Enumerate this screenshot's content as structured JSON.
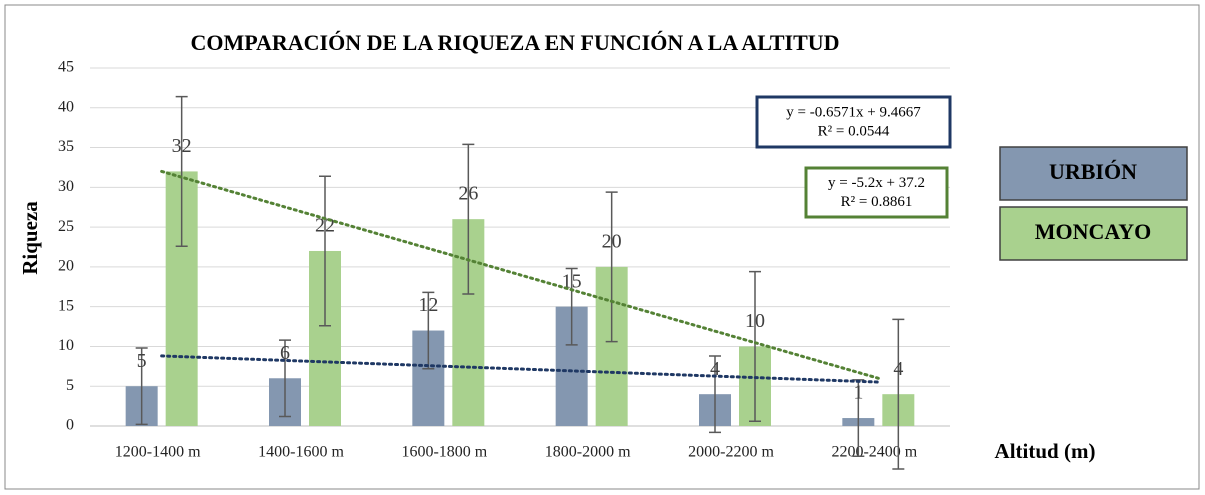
{
  "chart_data": {
    "type": "bar",
    "title": "COMPARACIÓN DE LA RIQUEZA EN FUNCIÓN A LA ALTITUD",
    "x_label": "Altitud (m)",
    "y_label": "Riqueza",
    "categories": [
      "1200-1400 m",
      "1400-1600 m",
      "1600-1800 m",
      "1800-2000 m",
      "2000-2200 m",
      "2200-2400 m"
    ],
    "series": [
      {
        "name": "URBIÓN",
        "color": "#8497b0",
        "values": [
          5,
          6,
          12,
          15,
          4,
          1
        ],
        "errors": [
          4.8,
          4.8,
          4.8,
          4.8,
          4.8,
          4.8
        ]
      },
      {
        "name": "MONCAYO",
        "color": "#a9d18e",
        "values": [
          32,
          22,
          26,
          20,
          10,
          4
        ],
        "errors": [
          9.4,
          9.4,
          9.4,
          9.4,
          9.4,
          9.4
        ]
      }
    ],
    "trendlines": [
      {
        "color": "#1f3864",
        "slope": -0.6571,
        "intercept": 9.4667,
        "equation": "y = -0.6571x + 9.4667",
        "r2": "R² = 0.0544"
      },
      {
        "color": "#548235",
        "slope": -5.2,
        "intercept": 37.2,
        "equation": "y = -5.2x + 37.2",
        "r2": "R² = 0.8861"
      }
    ],
    "ylim": [
      0,
      45
    ],
    "yticks": [
      0,
      5,
      10,
      15,
      20,
      25,
      30,
      35,
      40,
      45
    ],
    "grid": true
  }
}
